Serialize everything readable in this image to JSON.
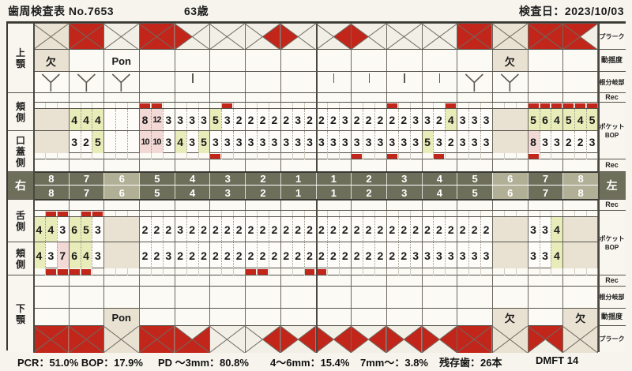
{
  "header": {
    "title": "歯周検査表  No.7653",
    "age": "63歳",
    "date": "検査日：2023/10/03"
  },
  "footer": {
    "pcr": "PCR：51.0% BOP：17.9%",
    "pd3": "PD ～3mm：80.8%",
    "pd46": "4～6mm：15.4%",
    "pd7": "7mm～：3.8%",
    "remaining": "残存歯：26本",
    "dmft": "DMFT 14"
  },
  "labels": {
    "left": [
      "上顎",
      "頬側",
      "口蓋側",
      "右",
      "舌側",
      "頬側",
      "下顎"
    ],
    "right": [
      "プラーク",
      "動揺度",
      "根分岐部",
      "Rec",
      "ポケット\nBOP",
      "Rec",
      "左",
      "Rec",
      "ポケット\nBOP",
      "Rec",
      "根分岐部",
      "動揺度",
      "プラーク"
    ]
  },
  "teeth": {
    "upper_numbers": [
      "8",
      "7",
      "6",
      "5",
      "4",
      "3",
      "2",
      "1",
      "1",
      "2",
      "3",
      "4",
      "5",
      "6",
      "7",
      "8"
    ],
    "lower_numbers": [
      "8",
      "7",
      "6",
      "5",
      "4",
      "3",
      "2",
      "1",
      "1",
      "2",
      "3",
      "4",
      "5",
      "6",
      "7",
      "8"
    ],
    "band_highlight": [
      2,
      13,
      15
    ]
  },
  "upper": {
    "plaque": [
      "none",
      "full",
      "none",
      "full",
      "left",
      "none",
      "right",
      "left",
      "right",
      "left",
      "none",
      "none",
      "full",
      "none",
      "full",
      "no-right"
    ],
    "mobility": [
      "欠",
      "",
      "Pon",
      "",
      "",
      "",
      "",
      "",
      "",
      "",
      "",
      "",
      "",
      "欠",
      "",
      ""
    ],
    "missing": [
      0,
      13
    ],
    "furcation_y": [
      0,
      1,
      2,
      12,
      13
    ],
    "furcation_tick": [
      4,
      8,
      9,
      10,
      11
    ],
    "buccal": {
      "values": [
        null,
        [
          4,
          4,
          4
        ],
        null,
        [
          8,
          12,
          3
        ],
        [
          3,
          3,
          3
        ],
        [
          5,
          3,
          2
        ],
        [
          2,
          2,
          2
        ],
        [
          2,
          3,
          2
        ],
        [
          2,
          2,
          3
        ],
        [
          2,
          2,
          2
        ],
        [
          2,
          2,
          3
        ],
        [
          3,
          2,
          4
        ],
        [
          3,
          3,
          3
        ],
        null,
        [
          5,
          6,
          4
        ],
        [
          5,
          4,
          5
        ]
      ],
      "bop": [
        [
          3,
          0
        ],
        [
          3,
          1
        ],
        [
          5,
          1
        ],
        [
          10,
          0
        ],
        [
          11,
          2
        ],
        [
          14,
          0
        ],
        [
          14,
          1
        ],
        [
          14,
          2
        ],
        [
          15,
          0
        ],
        [
          15,
          1
        ],
        [
          15,
          2
        ]
      ]
    },
    "palatal": {
      "values": [
        null,
        [
          3,
          2,
          5
        ],
        null,
        [
          10,
          10,
          3
        ],
        [
          4,
          3,
          5
        ],
        [
          3,
          3,
          3
        ],
        [
          3,
          3,
          3
        ],
        [
          3,
          3,
          3
        ],
        [
          3,
          3,
          3
        ],
        [
          3,
          3,
          3
        ],
        [
          3,
          3,
          3
        ],
        [
          5,
          3,
          2
        ],
        [
          3,
          3,
          3
        ],
        null,
        [
          8,
          3,
          3
        ],
        [
          2,
          2,
          3
        ]
      ],
      "bop": [
        [
          5,
          0
        ],
        [
          9,
          0
        ],
        [
          10,
          0
        ],
        [
          11,
          1
        ],
        [
          14,
          0
        ]
      ]
    }
  },
  "lower": {
    "lingual": {
      "values": [
        [
          4,
          4,
          3
        ],
        [
          6,
          5,
          3
        ],
        null,
        [
          2,
          2,
          2
        ],
        [
          3,
          2,
          2
        ],
        [
          2,
          2,
          2
        ],
        [
          2,
          2,
          2
        ],
        [
          2,
          2,
          2
        ],
        [
          2,
          2,
          2
        ],
        [
          2,
          2,
          2
        ],
        [
          2,
          2,
          2
        ],
        [
          2,
          2,
          2
        ],
        [
          2,
          2,
          2
        ],
        null,
        [
          3,
          3,
          4
        ],
        null
      ],
      "bop": [
        [
          0,
          1
        ],
        [
          0,
          2
        ],
        [
          1,
          1
        ],
        [
          1,
          2
        ]
      ]
    },
    "buccal": {
      "values": [
        [
          4,
          3,
          7
        ],
        [
          6,
          4,
          3
        ],
        null,
        [
          2,
          2,
          3
        ],
        [
          2,
          2,
          2
        ],
        [
          2,
          2,
          2
        ],
        [
          2,
          2,
          2
        ],
        [
          2,
          2,
          2
        ],
        [
          2,
          2,
          2
        ],
        [
          2,
          2,
          2
        ],
        [
          2,
          2,
          3
        ],
        [
          3,
          3,
          3
        ],
        [
          3,
          3,
          3
        ],
        null,
        [
          3,
          3,
          4
        ],
        null
      ],
      "bop": [
        [
          0,
          1
        ],
        [
          0,
          2
        ],
        [
          1,
          0
        ],
        [
          1,
          1
        ],
        [
          6,
          0
        ],
        [
          6,
          1
        ],
        [
          7,
          2
        ],
        [
          8,
          0
        ]
      ]
    },
    "mobility": [
      "",
      "",
      "Pon",
      "",
      "",
      "",
      "",
      "",
      "",
      "",
      "",
      "",
      "",
      "欠",
      "",
      "欠"
    ],
    "missing": [
      2,
      13,
      15
    ],
    "furcation_y": [],
    "furcation_tick": [],
    "plaque": [
      "full",
      "full",
      "none",
      "full",
      "no-top",
      "none",
      "right",
      "lr",
      "lr",
      "lr",
      "lr",
      "lr",
      "full",
      "none",
      "no-bottom",
      "none"
    ]
  },
  "colors": {
    "red": "#c2261b",
    "green": "#e7ecb9",
    "pink": "#f2d9d5",
    "beige": "#e9e2d2",
    "band": "#6d6f5a",
    "band_light": "#b2af97",
    "paper": "#f6f4ed"
  }
}
